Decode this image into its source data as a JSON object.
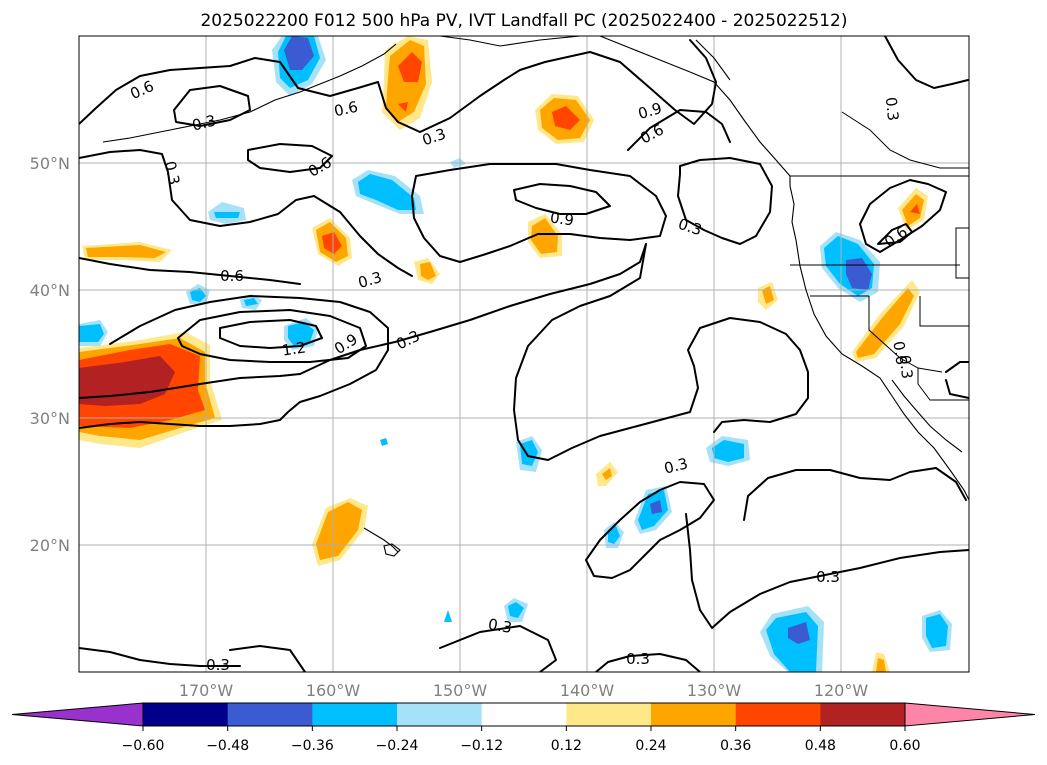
{
  "title": "2025022200 F012 500 hPa PV, IVT Landfall PC (2025022400 - 2025022512)",
  "map": {
    "lat_labels": [
      "50°N",
      "40°N",
      "30°N",
      "20°N"
    ],
    "lon_labels": [
      "170°W",
      "160°W",
      "150°W",
      "140°W",
      "130°W",
      "120°W"
    ],
    "contour_labels": [
      "0.6",
      "0.3",
      "0.6",
      "0.3",
      "0.6",
      "0.3",
      "0.9",
      "0.6",
      "0.3",
      "0.9",
      "0.3",
      "0.6",
      "0.3",
      "0.6",
      "1.2",
      "0.9",
      "0.3",
      "0.6",
      "0.3",
      "0.3",
      "0.3",
      "0.3",
      "0.3",
      "0.3"
    ]
  },
  "colorbar": {
    "ticks": [
      "−0.60",
      "−0.48",
      "−0.36",
      "−0.24",
      "−0.12",
      "0.12",
      "0.24",
      "0.36",
      "0.48",
      "0.60"
    ],
    "colors": [
      "#9932cc",
      "#00008b",
      "#3a5bd1",
      "#00bfff",
      "#a6e1fa",
      "#ffffff",
      "#ffe88a",
      "#ffa500",
      "#ff4500",
      "#b22222",
      "#ff85a8"
    ]
  },
  "colors": {
    "grid": "#b0b0b0",
    "axis_text": "#808080"
  }
}
